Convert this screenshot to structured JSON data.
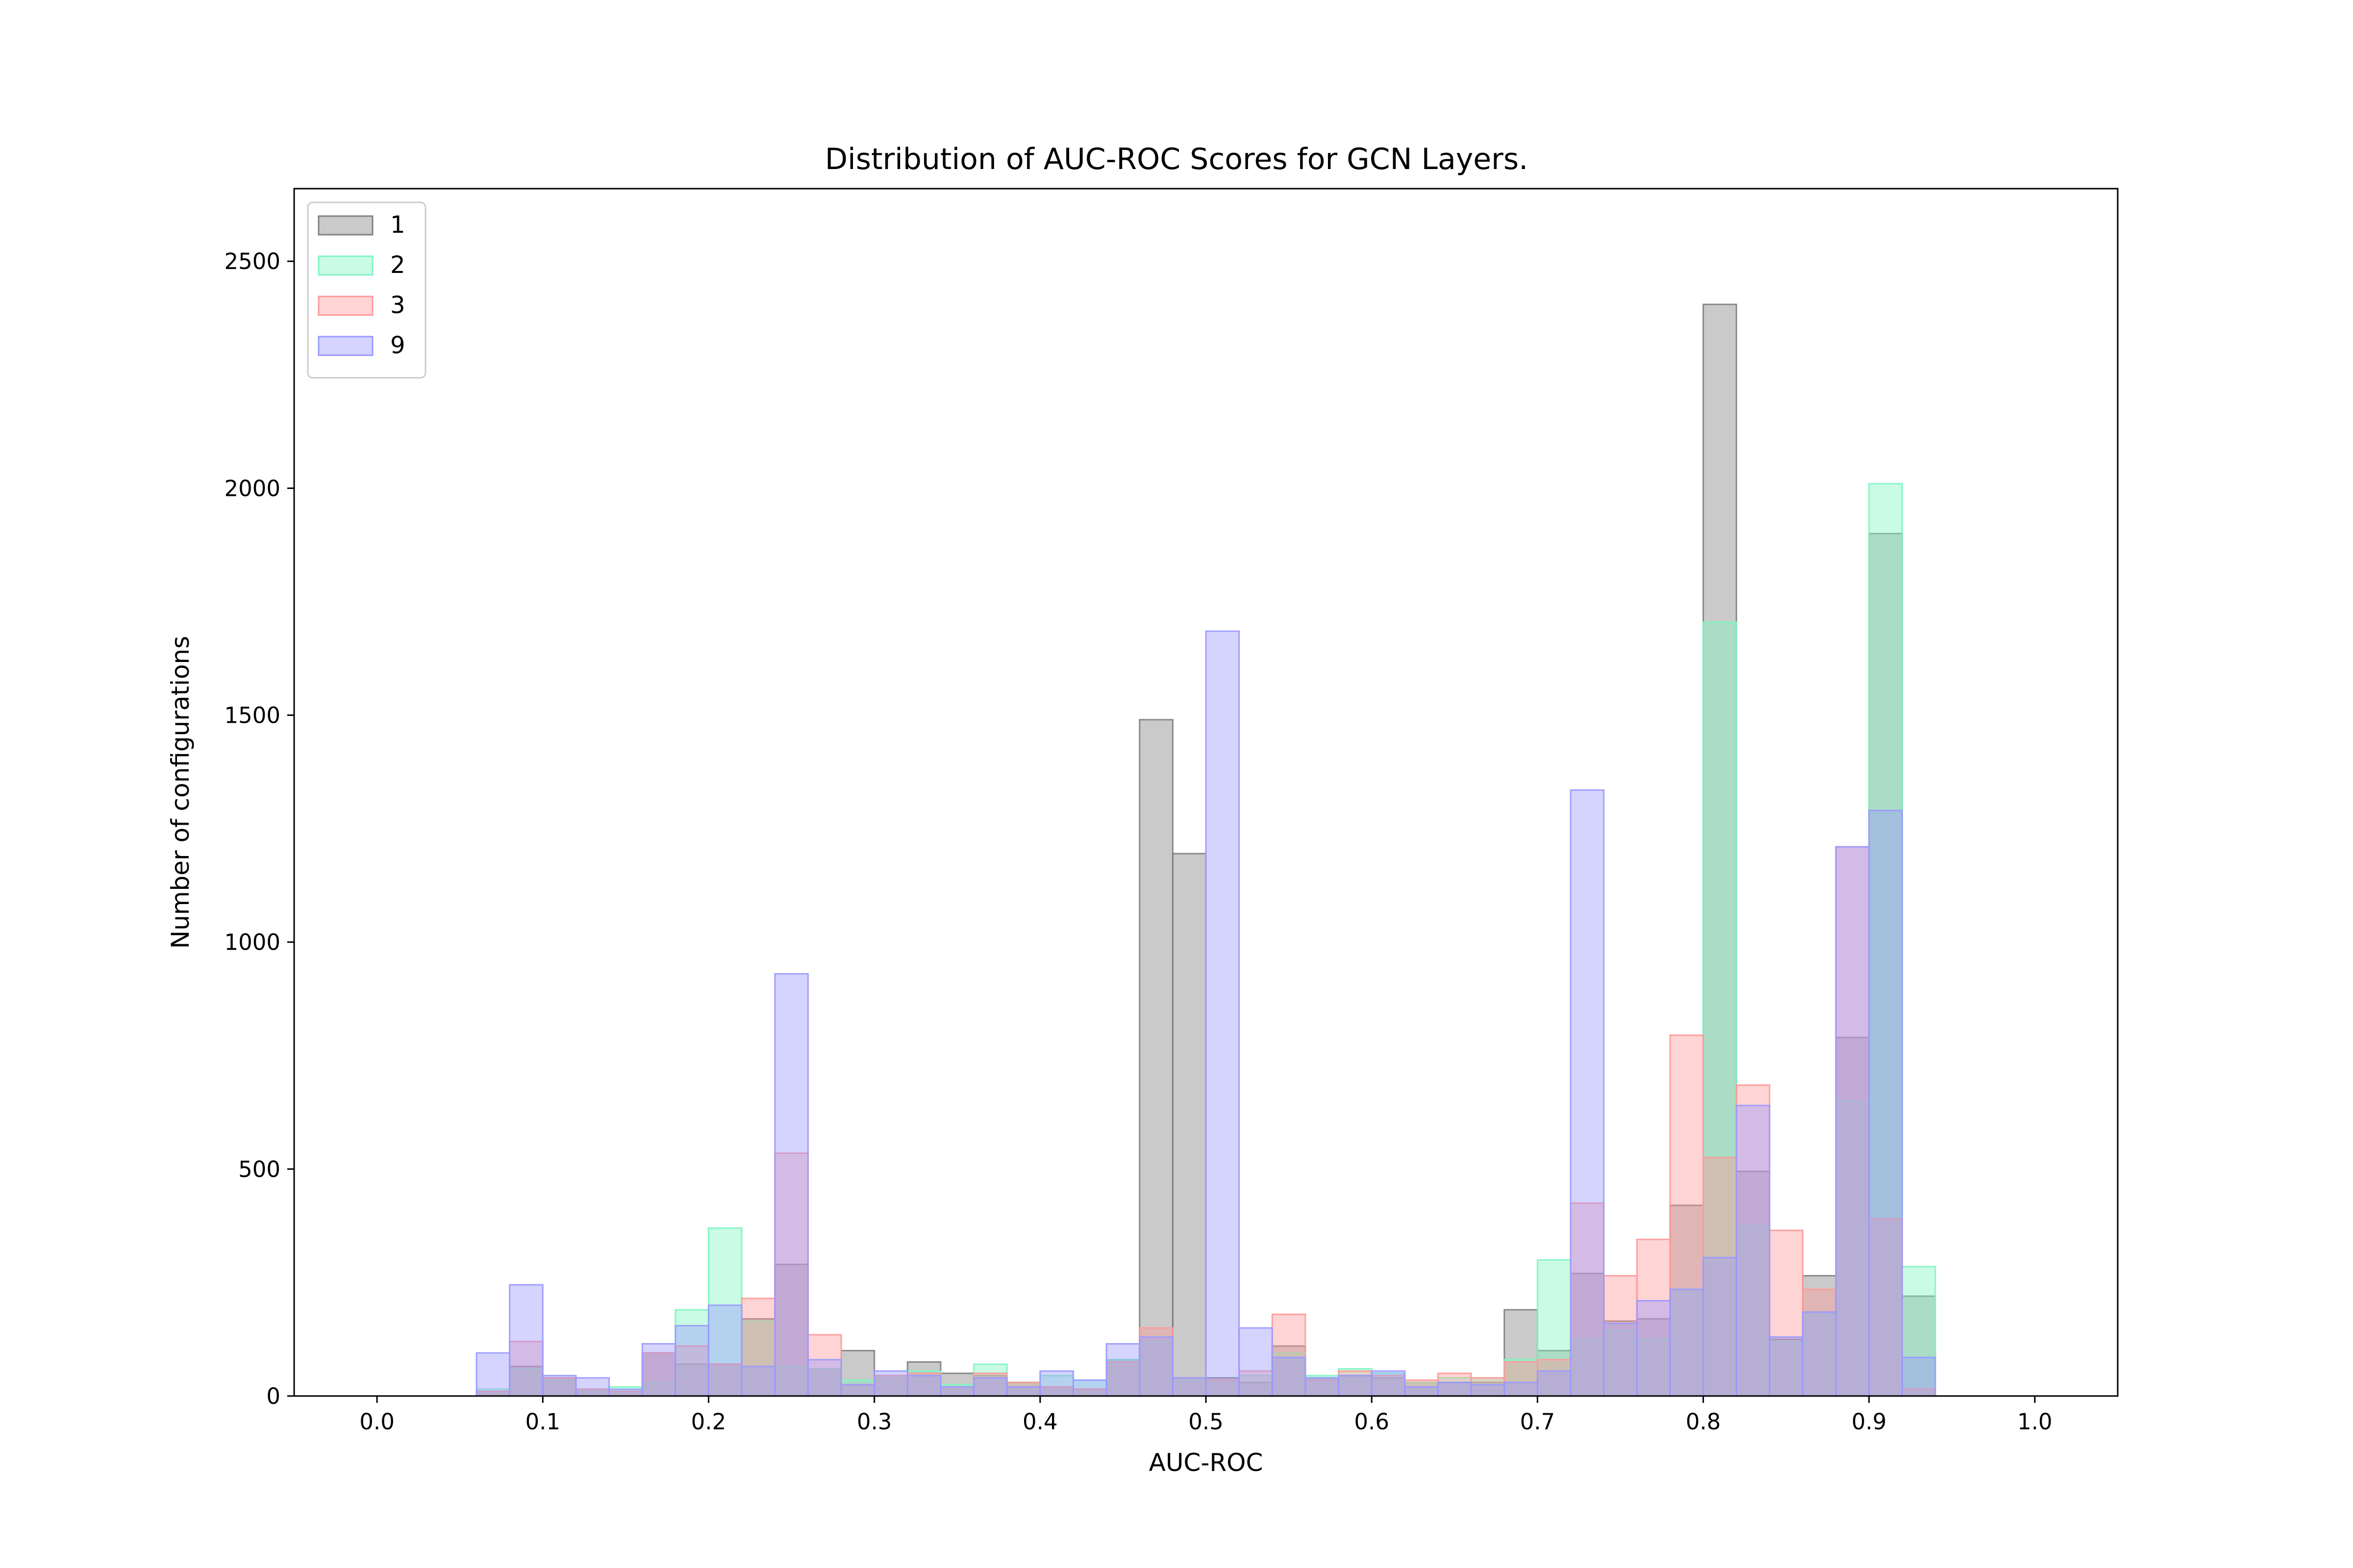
{
  "chart_data": {
    "type": "bar",
    "subtype": "overlaid-histogram",
    "title": "Distribution of AUC-ROC Scores for GCN Layers.",
    "xlabel": "AUC-ROC",
    "ylabel": "Number of configurations",
    "xlim": [
      -0.05,
      1.05
    ],
    "ylim": [
      0,
      2660
    ],
    "bin_width": 0.02,
    "x": [
      0.07,
      0.09,
      0.11,
      0.13,
      0.15,
      0.17,
      0.19,
      0.21,
      0.23,
      0.25,
      0.27,
      0.29,
      0.31,
      0.33,
      0.35,
      0.37,
      0.39,
      0.41,
      0.43,
      0.45,
      0.47,
      0.49,
      0.51,
      0.53,
      0.55,
      0.57,
      0.59,
      0.61,
      0.63,
      0.65,
      0.67,
      0.69,
      0.71,
      0.73,
      0.75,
      0.77,
      0.79,
      0.81,
      0.83,
      0.85,
      0.87,
      0.89,
      0.91,
      0.93
    ],
    "xticks": [
      "0.0",
      "0.1",
      "0.2",
      "0.3",
      "0.4",
      "0.5",
      "0.6",
      "0.7",
      "0.8",
      "0.9",
      "1.0"
    ],
    "xtick_values": [
      0.0,
      0.1,
      0.2,
      0.3,
      0.4,
      0.5,
      0.6,
      0.7,
      0.8,
      0.9,
      1.0
    ],
    "yticks": [
      "0",
      "500",
      "1000",
      "1500",
      "2000",
      "2500"
    ],
    "ytick_values": [
      0,
      500,
      1000,
      1500,
      2000,
      2500
    ],
    "grid": false,
    "legend_position": "top-left",
    "series": [
      {
        "name": "1",
        "color": "#808080",
        "values": [
          10,
          65,
          40,
          15,
          10,
          95,
          70,
          70,
          170,
          290,
          60,
          100,
          45,
          75,
          50,
          45,
          30,
          20,
          15,
          80,
          1490,
          1195,
          40,
          30,
          110,
          40,
          45,
          40,
          30,
          30,
          30,
          190,
          100,
          270,
          165,
          170,
          420,
          2405,
          495,
          125,
          265,
          790,
          1900,
          220
        ]
      },
      {
        "name": "2",
        "color": "#7ff5c0",
        "values": [
          15,
          60,
          35,
          15,
          20,
          30,
          190,
          370,
          165,
          65,
          60,
          35,
          45,
          55,
          25,
          70,
          30,
          45,
          35,
          80,
          120,
          35,
          35,
          45,
          95,
          45,
          60,
          50,
          30,
          40,
          40,
          80,
          300,
          125,
          145,
          125,
          235,
          1705,
          375,
          120,
          180,
          650,
          2010,
          285
        ]
      },
      {
        "name": "3",
        "color": "#ff9999",
        "values": [
          10,
          120,
          40,
          15,
          10,
          95,
          110,
          70,
          215,
          535,
          135,
          25,
          45,
          50,
          20,
          50,
          30,
          20,
          15,
          75,
          150,
          40,
          35,
          55,
          180,
          35,
          55,
          45,
          35,
          50,
          40,
          75,
          80,
          425,
          265,
          345,
          795,
          525,
          685,
          365,
          235,
          1210,
          390,
          15
        ]
      },
      {
        "name": "9",
        "color": "#9999ff",
        "values": [
          95,
          245,
          45,
          40,
          15,
          115,
          155,
          200,
          65,
          930,
          80,
          25,
          55,
          45,
          20,
          40,
          20,
          55,
          35,
          115,
          130,
          40,
          1685,
          150,
          85,
          40,
          45,
          55,
          20,
          30,
          25,
          30,
          55,
          1335,
          160,
          210,
          235,
          305,
          640,
          130,
          185,
          1210,
          1290,
          85
        ]
      }
    ]
  }
}
